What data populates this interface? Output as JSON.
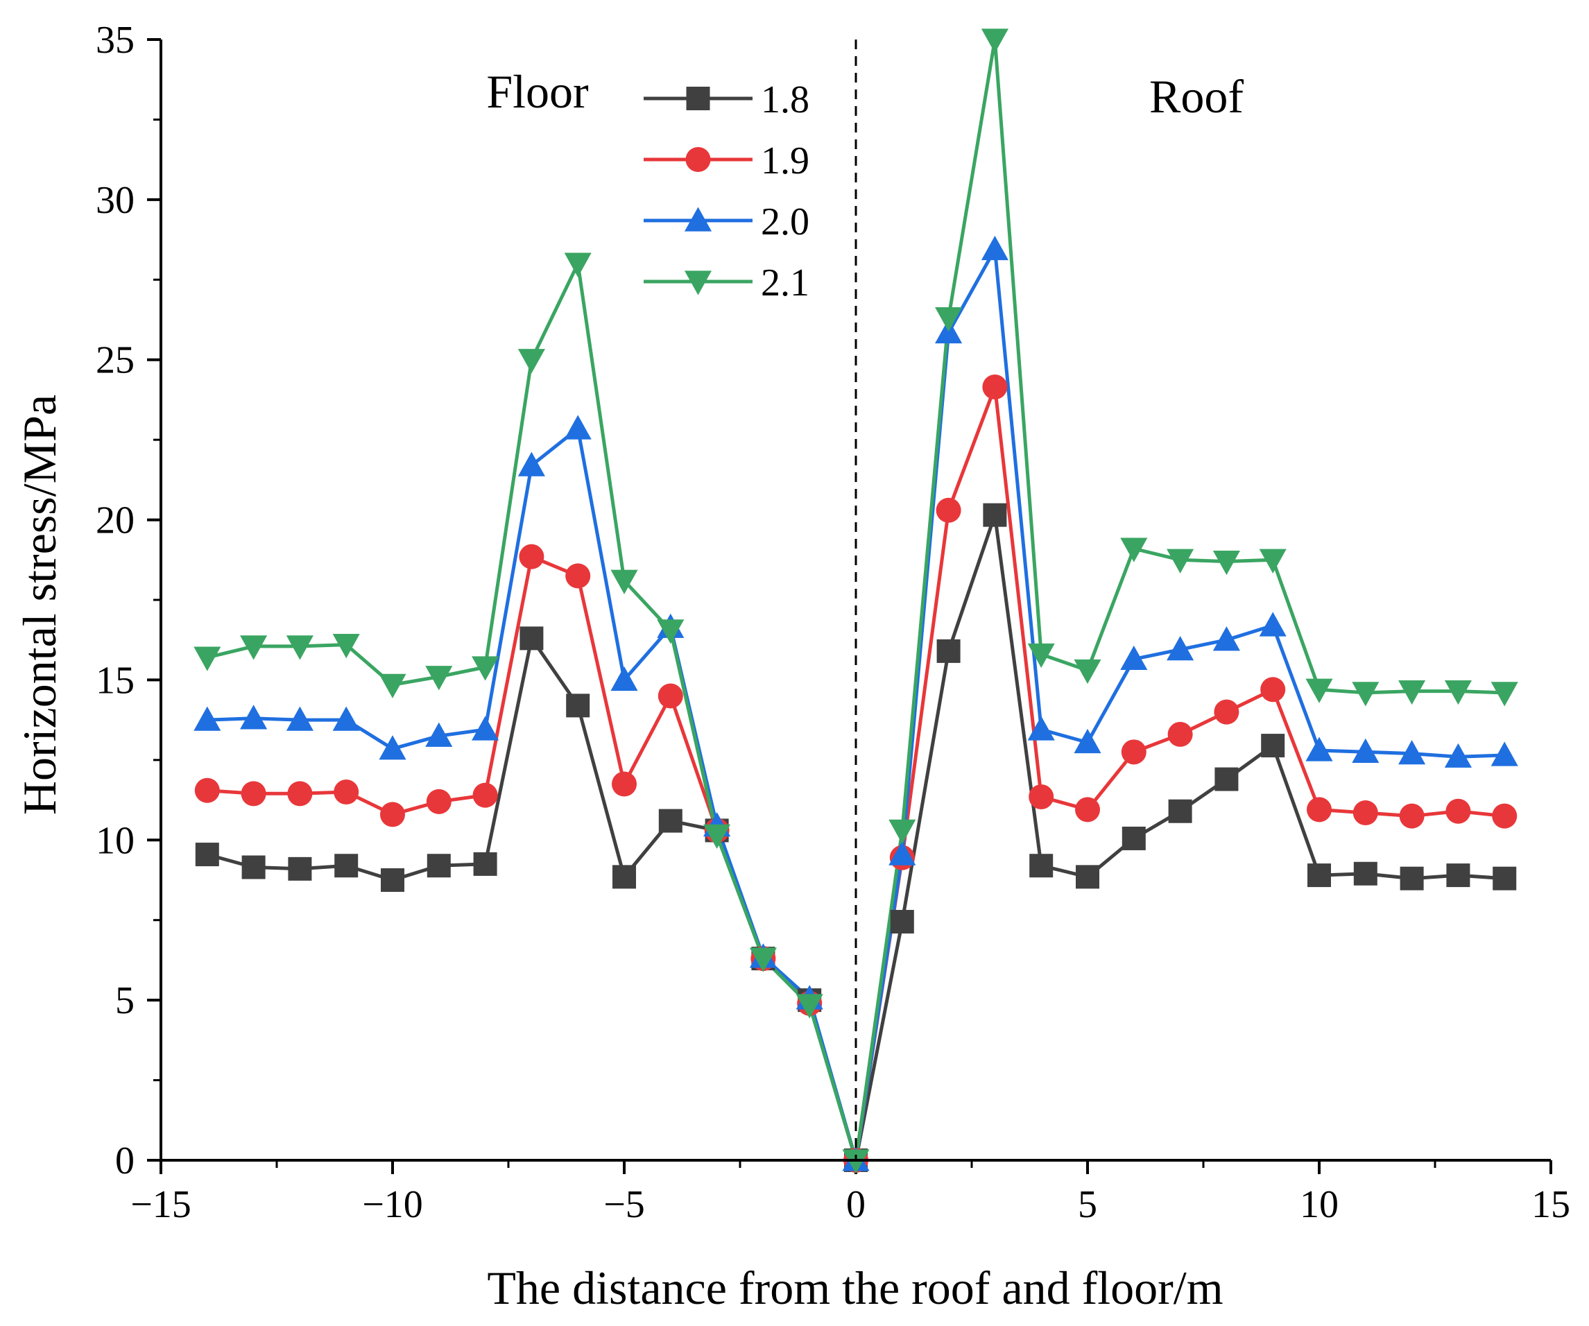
{
  "chart_data": {
    "type": "line",
    "title": "",
    "xlabel": "The distance from the roof and floor/m",
    "ylabel": "Horizontal stress/MPa",
    "xlim": [
      -15,
      15
    ],
    "ylim": [
      0,
      35
    ],
    "xticks": [
      -15,
      -10,
      -5,
      0,
      5,
      10,
      15
    ],
    "xtick_labels": [
      "−15",
      "−10",
      "−5",
      "0",
      "5",
      "10",
      "15"
    ],
    "yticks": [
      0,
      5,
      10,
      15,
      20,
      25,
      30,
      35
    ],
    "ytick_labels": [
      "0",
      "5",
      "10",
      "15",
      "20",
      "25",
      "30",
      "35"
    ],
    "grid": false,
    "legend_position": "top-left",
    "annotations": {
      "left": "Floor",
      "right": "Roof"
    },
    "x": [
      -14,
      -13,
      -12,
      -11,
      -10,
      -9,
      -8,
      -7,
      -6,
      -5,
      -4,
      -3,
      -2,
      -1,
      0,
      1,
      2,
      3,
      4,
      5,
      6,
      7,
      8,
      9,
      10,
      11,
      12,
      13,
      14
    ],
    "series": [
      {
        "name": "1.8",
        "color": "#404040",
        "marker": "square",
        "values": [
          9.55,
          9.15,
          9.1,
          9.2,
          8.75,
          9.2,
          9.25,
          16.3,
          14.2,
          8.85,
          10.6,
          10.3,
          6.3,
          5.0,
          0,
          7.45,
          15.9,
          20.15,
          9.2,
          8.85,
          10.05,
          10.9,
          11.9,
          12.95,
          8.9,
          8.95,
          8.8,
          8.9,
          8.8
        ]
      },
      {
        "name": "1.9",
        "color": "#e8373a",
        "marker": "circle",
        "values": [
          11.55,
          11.45,
          11.45,
          11.5,
          10.8,
          11.2,
          11.4,
          18.85,
          18.25,
          11.75,
          14.5,
          10.3,
          6.3,
          4.9,
          0,
          9.45,
          20.3,
          24.15,
          11.35,
          10.95,
          12.75,
          13.3,
          14.0,
          14.7,
          10.95,
          10.85,
          10.75,
          10.9,
          10.75
        ]
      },
      {
        "name": "2.0",
        "color": "#1f6fe0",
        "marker": "triangle-up",
        "values": [
          13.75,
          13.8,
          13.75,
          13.75,
          12.85,
          13.25,
          13.45,
          21.7,
          22.85,
          15.0,
          16.65,
          10.45,
          6.35,
          5.05,
          0,
          9.55,
          25.85,
          28.45,
          13.45,
          13.05,
          15.65,
          15.95,
          16.25,
          16.7,
          12.8,
          12.75,
          12.7,
          12.6,
          12.65
        ]
      },
      {
        "name": "2.1",
        "color": "#3aa562",
        "marker": "triangle-down",
        "values": [
          15.7,
          16.05,
          16.05,
          16.1,
          14.85,
          15.1,
          15.4,
          25.0,
          28.0,
          18.1,
          16.55,
          10.15,
          6.3,
          4.85,
          0,
          10.3,
          26.3,
          35.0,
          15.8,
          15.3,
          19.1,
          18.75,
          18.7,
          18.75,
          14.7,
          14.6,
          14.65,
          14.65,
          14.6
        ]
      }
    ]
  }
}
